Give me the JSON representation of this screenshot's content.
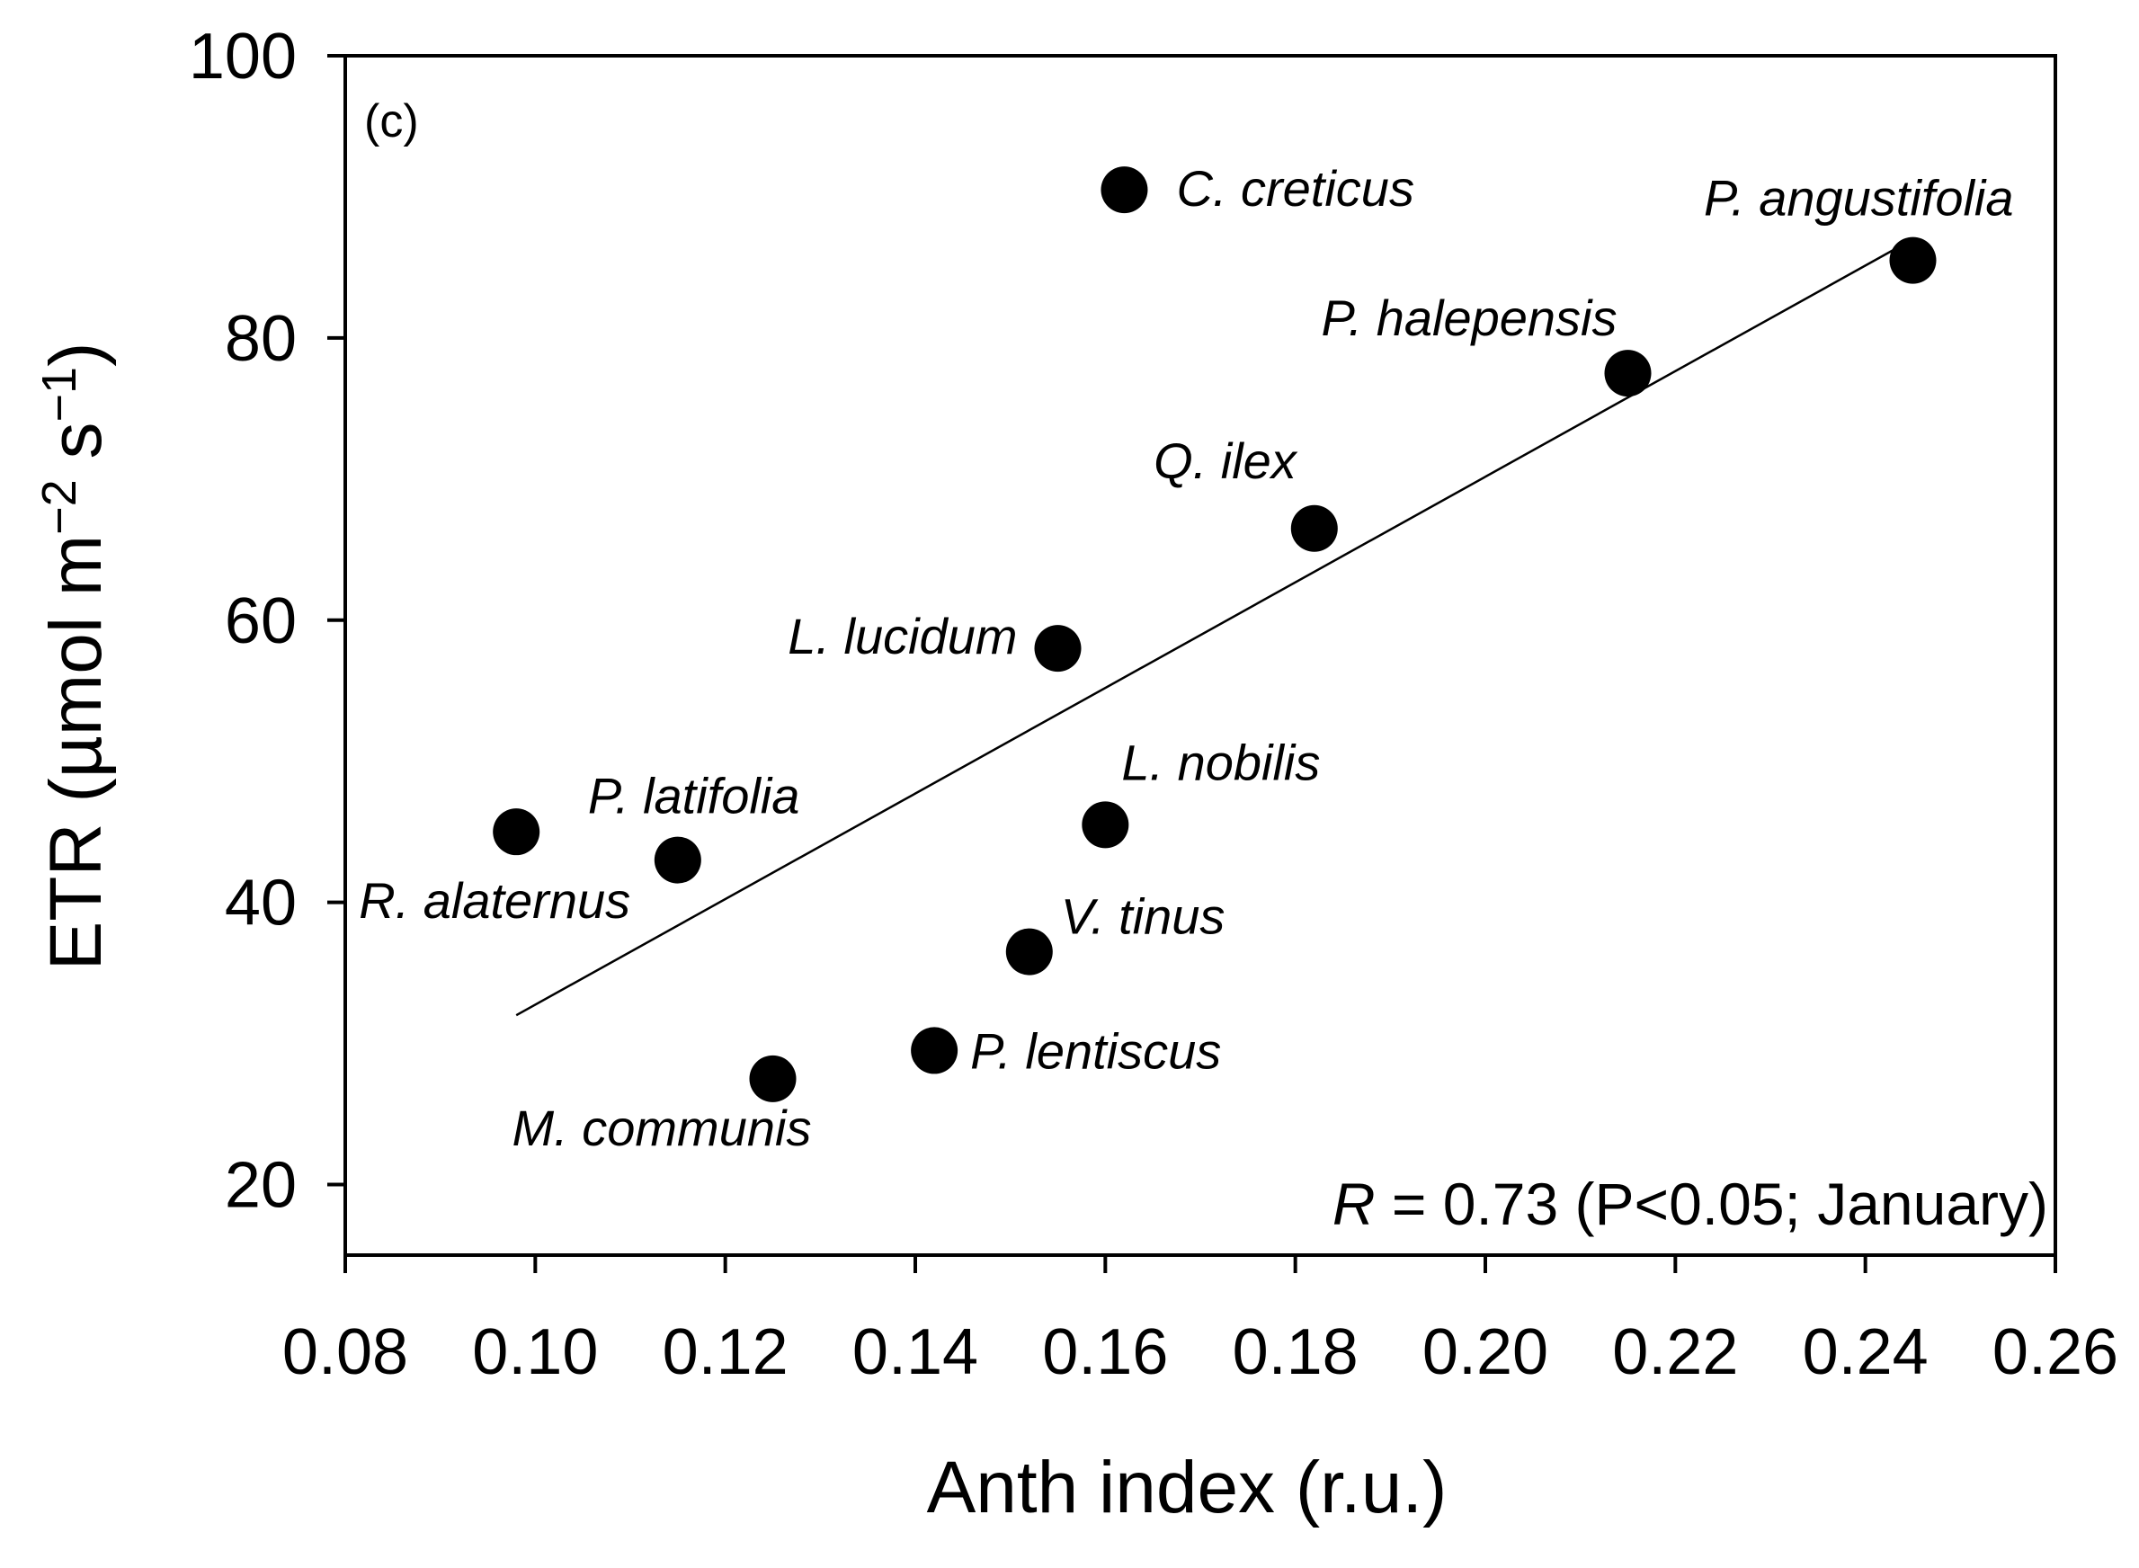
{
  "chart_data": {
    "type": "scatter",
    "panel_label": "(c)",
    "xlabel": "Anth index (r.u.)",
    "ylabel": {
      "main": "ETR (µmol m",
      "sup1": "−2",
      "mid": " s",
      "sup2": "−1",
      "end": ")"
    },
    "xlim": [
      0.08,
      0.26
    ],
    "ylim": [
      15,
      100
    ],
    "xticks": [
      "0.08",
      "0.10",
      "0.12",
      "0.14",
      "0.16",
      "0.18",
      "0.20",
      "0.22",
      "0.24",
      "0.26"
    ],
    "yticks": [
      "20",
      "40",
      "60",
      "80",
      "100"
    ],
    "points": [
      {
        "name": "C. creticus",
        "x": 0.162,
        "y": 90.5
      },
      {
        "name": "P. angustifolia",
        "x": 0.245,
        "y": 85.5
      },
      {
        "name": "P. halepensis",
        "x": 0.215,
        "y": 77.5
      },
      {
        "name": "Q. ilex",
        "x": 0.182,
        "y": 66.5
      },
      {
        "name": "L. lucidum",
        "x": 0.155,
        "y": 58
      },
      {
        "name": "L. nobilis",
        "x": 0.16,
        "y": 45.5
      },
      {
        "name": "R. alaternus",
        "x": 0.098,
        "y": 45
      },
      {
        "name": "P. latifolia",
        "x": 0.115,
        "y": 43
      },
      {
        "name": "V. tinus",
        "x": 0.152,
        "y": 36.5
      },
      {
        "name": "P. lentiscus",
        "x": 0.142,
        "y": 29.5
      },
      {
        "name": "M. communis",
        "x": 0.125,
        "y": 27.5
      }
    ],
    "fit_line": {
      "x": [
        0.098,
        0.245
      ],
      "y": [
        32,
        87
      ]
    },
    "annotation": {
      "r_symbol": "R",
      "text": " = 0.73 (P<0.05; January)"
    }
  }
}
